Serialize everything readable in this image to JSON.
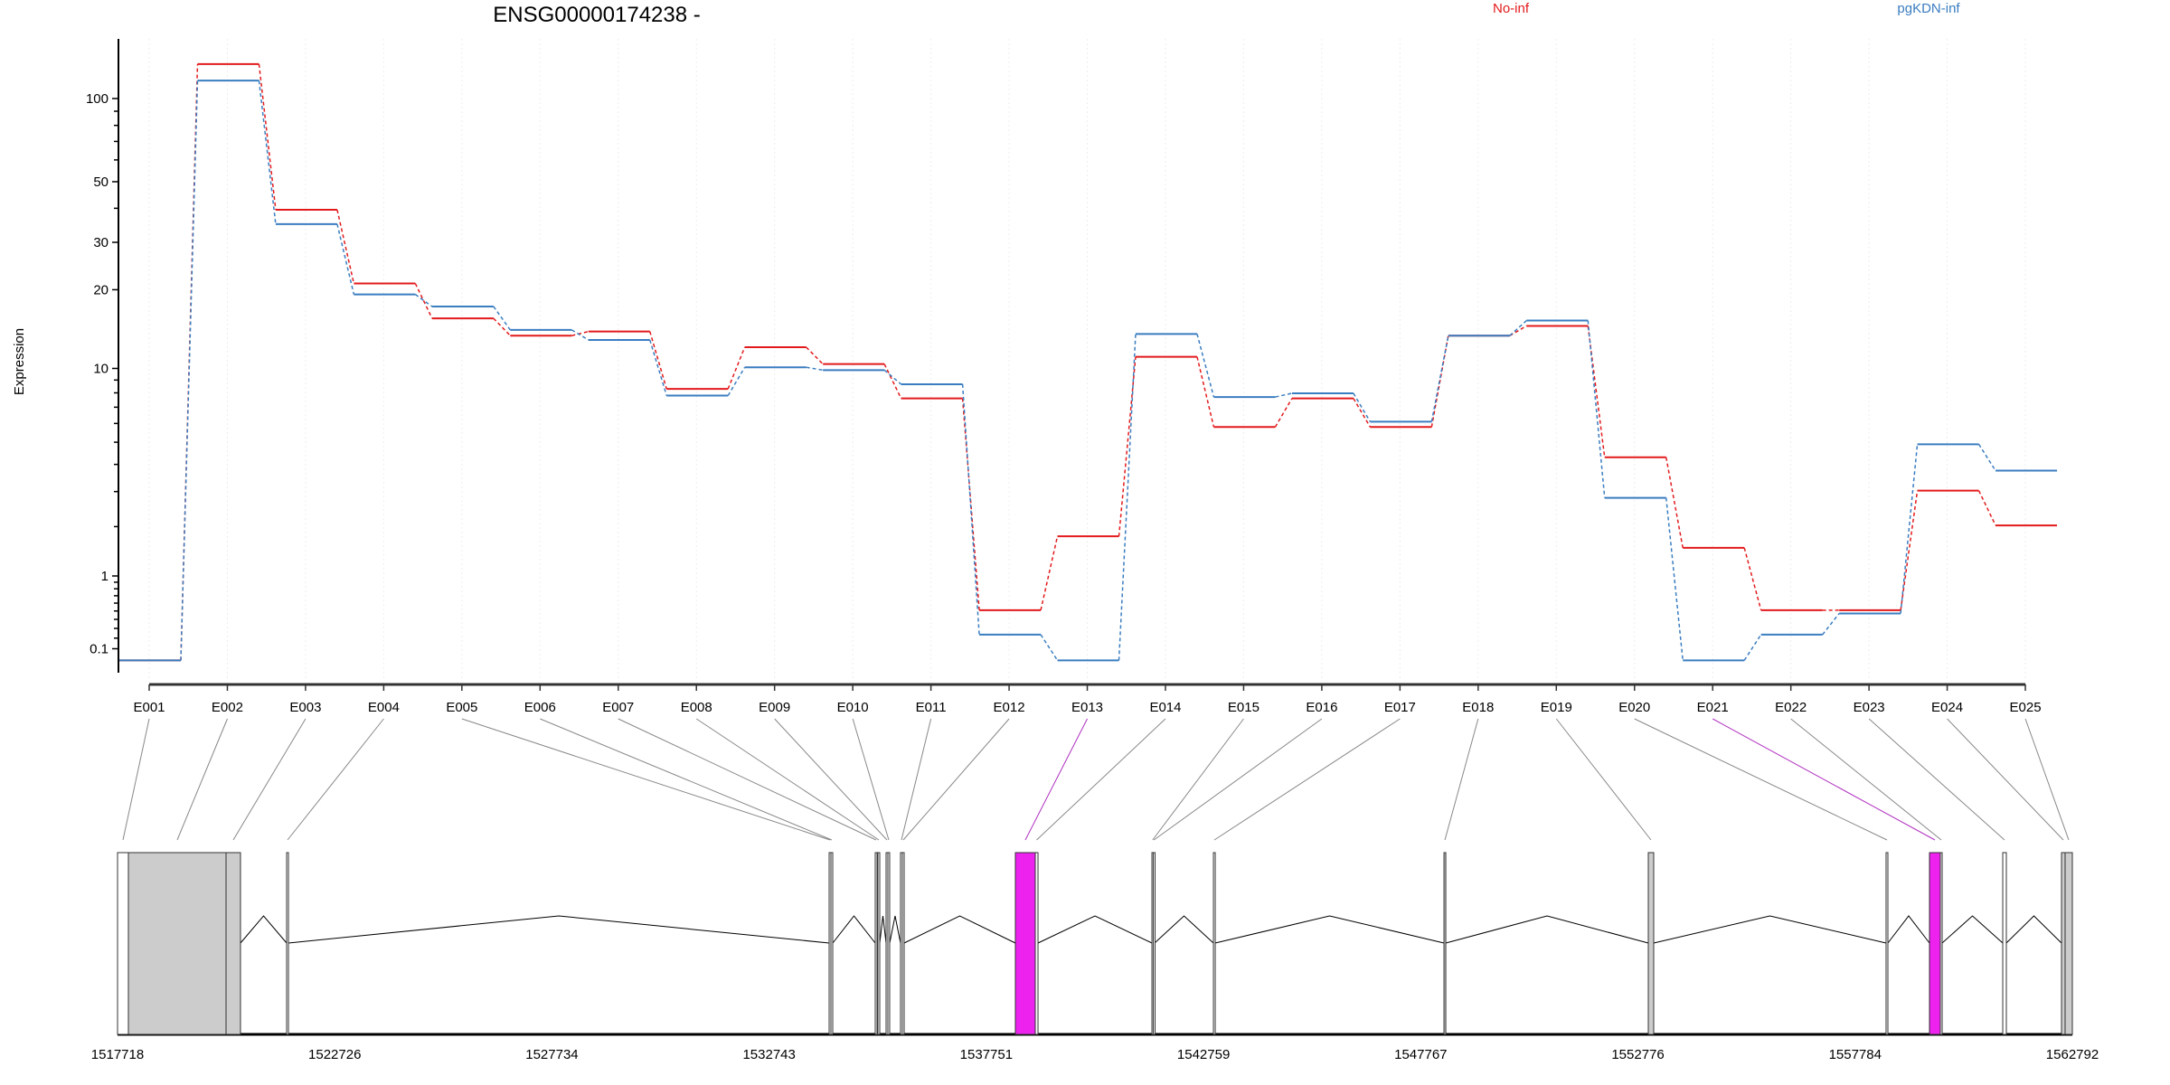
{
  "chart_data": {
    "type": "line",
    "title": "ENSG00000174238 -",
    "ylabel": "Expression",
    "xlabel": "",
    "yscale": "log10(x+1)",
    "ylim": [
      0,
      140
    ],
    "yticks": [
      0.1,
      1,
      10,
      20,
      30,
      50,
      100
    ],
    "yticks_labels": [
      "0.1",
      "1",
      "10",
      "20",
      "30",
      "50",
      "100"
    ],
    "legend_position": "top",
    "grid": "vertical dotted at each exon",
    "categories": [
      "E001",
      "E002",
      "E003",
      "E004",
      "E005",
      "E006",
      "E007",
      "E008",
      "E009",
      "E010",
      "E011",
      "E012",
      "E013",
      "E014",
      "E015",
      "E016",
      "E017",
      "E018",
      "E019",
      "E020",
      "E021",
      "E022",
      "E023",
      "E024",
      "E025"
    ],
    "series": [
      {
        "name": "No-inf",
        "color": "#e31a1c",
        "values": [
          0,
          133,
          39.5,
          21.1,
          15.6,
          13.4,
          13.9,
          8.3,
          12.1,
          10.4,
          7.6,
          0.51,
          1.77,
          11.1,
          5.8,
          7.6,
          5.8,
          13.4,
          14.6,
          4.3,
          1.52,
          0.51,
          0.51,
          3.03,
          2.03
        ]
      },
      {
        "name": "pgKDN-inf",
        "color": "#3a7dc0",
        "values": [
          0,
          116,
          35,
          19.2,
          17.3,
          14.1,
          12.9,
          7.8,
          10.1,
          9.85,
          8.66,
          0.235,
          0,
          13.6,
          7.7,
          7.97,
          6.1,
          13.4,
          15.3,
          2.8,
          0,
          0.235,
          0.47,
          4.9,
          3.75
        ]
      }
    ],
    "gene_model": {
      "range": [
        1517718,
        1562792
      ],
      "axis_labels": [
        "1517718",
        "1522726",
        "1527734",
        "1532743",
        "1537751",
        "1542759",
        "1547767",
        "1552776",
        "1557784",
        "1562792"
      ],
      "exons": [
        {
          "id": "E001",
          "start": 1517718,
          "end": 1517968,
          "fill": "#ffffff"
        },
        {
          "id": "E002",
          "start": 1517968,
          "end": 1520220,
          "fill": "#cccccc"
        },
        {
          "id": "E003",
          "start": 1520220,
          "end": 1520553,
          "fill": "#cccccc"
        },
        {
          "id": "E004",
          "start": 1521617,
          "end": 1521658,
          "fill": "#ffffff"
        },
        {
          "id": "E005",
          "start": 1534126,
          "end": 1534167,
          "fill": "#ffffff"
        },
        {
          "id": "E006",
          "start": 1534167,
          "end": 1534209,
          "fill": "#ffffff"
        },
        {
          "id": "E007",
          "start": 1535189,
          "end": 1535230,
          "fill": "#ffffff"
        },
        {
          "id": "E008",
          "start": 1535251,
          "end": 1535293,
          "fill": "#ffffff"
        },
        {
          "id": "E009",
          "start": 1535439,
          "end": 1535480,
          "fill": "#ffffff"
        },
        {
          "id": "E010",
          "start": 1535480,
          "end": 1535522,
          "fill": "#ffffff"
        },
        {
          "id": "E011",
          "start": 1535772,
          "end": 1535814,
          "fill": "#ffffff"
        },
        {
          "id": "E012",
          "start": 1535814,
          "end": 1535856,
          "fill": "#ffffff"
        },
        {
          "id": "E013",
          "start": 1538420,
          "end": 1538879,
          "fill": "#ee22ee"
        },
        {
          "id": "E014",
          "start": 1538879,
          "end": 1538942,
          "fill": "#ffffff"
        },
        {
          "id": "E015",
          "start": 1541569,
          "end": 1541600,
          "fill": "#ffffff"
        },
        {
          "id": "E016",
          "start": 1541600,
          "end": 1541631,
          "fill": "#ffffff"
        },
        {
          "id": "E017",
          "start": 1542987,
          "end": 1543028,
          "fill": "#ffffff"
        },
        {
          "id": "E018",
          "start": 1548303,
          "end": 1548345,
          "fill": "#cccccc"
        },
        {
          "id": "E019",
          "start": 1553014,
          "end": 1553139,
          "fill": "#cccccc"
        },
        {
          "id": "E020",
          "start": 1558497,
          "end": 1558538,
          "fill": "#ffffff"
        },
        {
          "id": "E021",
          "start": 1559498,
          "end": 1559748,
          "fill": "#ee22ee"
        },
        {
          "id": "E022",
          "start": 1559748,
          "end": 1559790,
          "fill": "#ffffff"
        },
        {
          "id": "E023",
          "start": 1561187,
          "end": 1561270,
          "fill": "#ffffff"
        },
        {
          "id": "E024",
          "start": 1562542,
          "end": 1562625,
          "fill": "#cccccc"
        },
        {
          "id": "E025",
          "start": 1562625,
          "end": 1562792,
          "fill": "#cccccc"
        }
      ]
    }
  }
}
